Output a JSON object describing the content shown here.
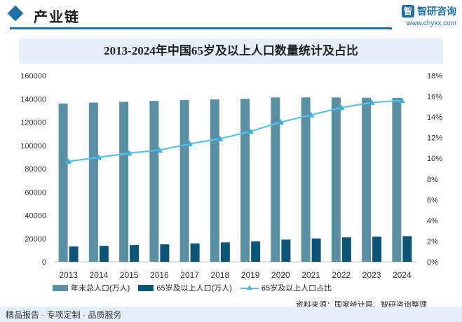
{
  "header": {
    "section_title": "产业链",
    "brand_logo": "智",
    "brand_name": "智研咨询",
    "brand_url": "www.chyxx.com"
  },
  "colors": {
    "accent": "#1f6fa3",
    "total_bar": "#5b8fa3",
    "elderly_bar": "#0d5479",
    "ratio_line": "#5bc0e6",
    "banner_bg": "#e4f1fa"
  },
  "chart_data": {
    "type": "bar",
    "title": "2013-2024年中国65岁及以上人口数量统计及占比",
    "categories": [
      "2013",
      "2014",
      "2015",
      "2016",
      "2017",
      "2018",
      "2019",
      "2020",
      "2021",
      "2022",
      "2023",
      "2024"
    ],
    "y_left": {
      "min": 0,
      "max": 160000,
      "step": 20000,
      "ticks": [
        "0",
        "20000",
        "40000",
        "60000",
        "80000",
        "100000",
        "120000",
        "140000",
        "160000"
      ]
    },
    "y_right": {
      "min": 0,
      "max": 18,
      "step": 2,
      "ticks": [
        "0%",
        "2%",
        "4%",
        "6%",
        "8%",
        "10%",
        "12%",
        "14%",
        "16%",
        "18%"
      ]
    },
    "series": [
      {
        "name": "年末总人口(万人)",
        "kind": "bar",
        "axis": "left",
        "color": "#5b8fa3",
        "values": [
          136072,
          136782,
          137462,
          138271,
          139008,
          139538,
          140005,
          141212,
          141260,
          141175,
          140967,
          140828
        ]
      },
      {
        "name": "65岁及以上人口(万人)",
        "kind": "bar",
        "axis": "left",
        "color": "#0d5479",
        "values": [
          13161,
          13755,
          14386,
          15003,
          15831,
          16658,
          17603,
          19064,
          20056,
          20978,
          21676,
          22023
        ]
      },
      {
        "name": "65岁及以上人口占比",
        "kind": "line",
        "axis": "right",
        "color": "#5bc0e6",
        "values": [
          9.7,
          10.1,
          10.5,
          10.8,
          11.4,
          11.9,
          12.6,
          13.5,
          14.2,
          14.9,
          15.4,
          15.6
        ]
      }
    ],
    "legend_position": "bottom-left",
    "grid": false
  },
  "legend": [
    {
      "label": "年末总人口(万人)",
      "kind": "bar",
      "color": "#5b8fa3"
    },
    {
      "label": "65岁及以上人口(万人)",
      "kind": "bar",
      "color": "#0d5479"
    },
    {
      "label": "65岁及以上人口占比",
      "kind": "line",
      "color": "#5bc0e6"
    }
  ],
  "source": "资料来源：国家统计局、智研咨询整理",
  "footer": "精品报告 · 专项定制 · 品质服务"
}
